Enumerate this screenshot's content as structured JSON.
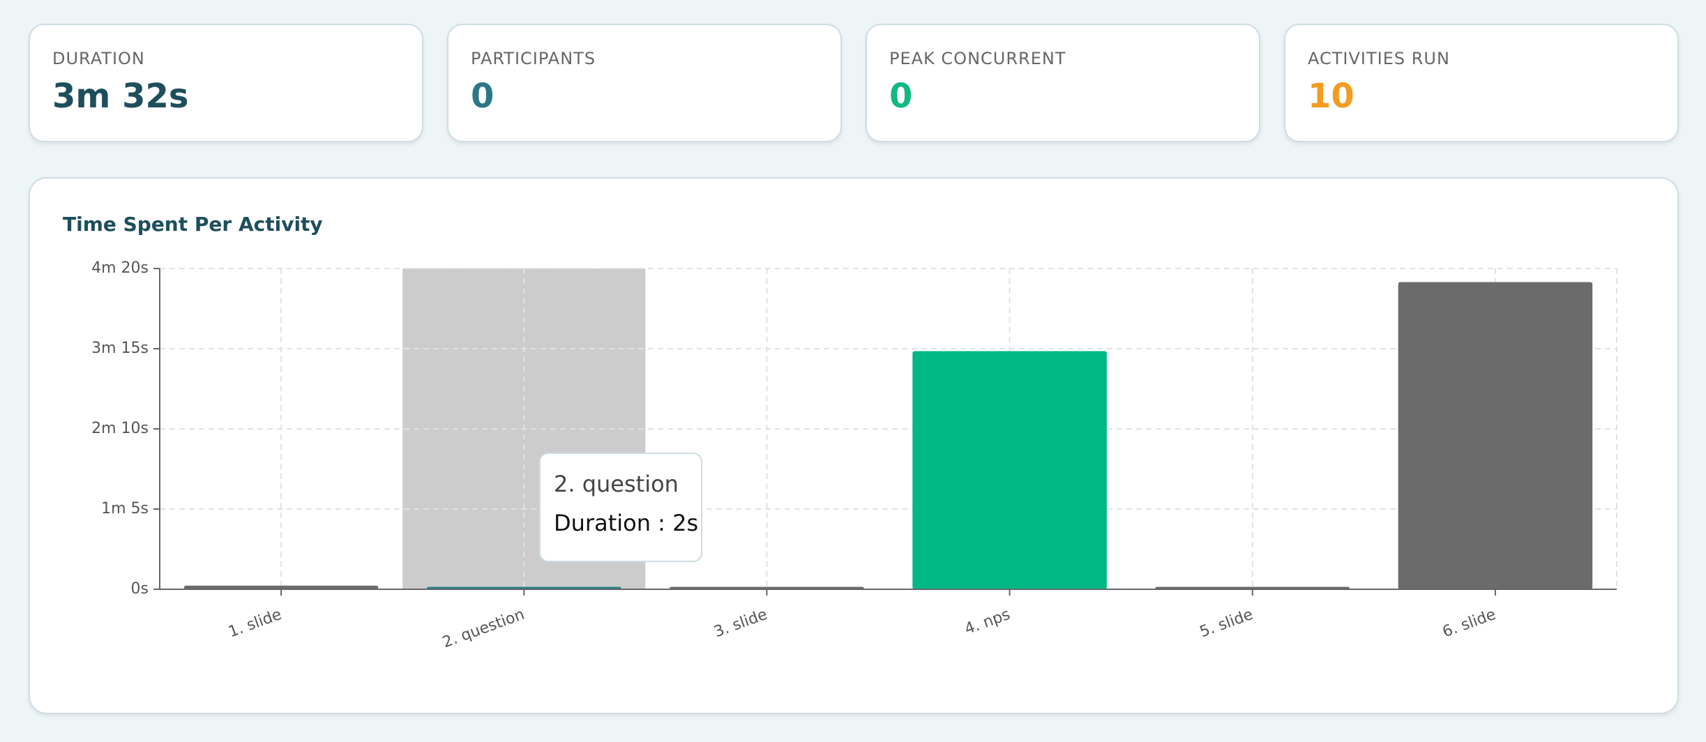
{
  "stats": [
    {
      "label": "DURATION",
      "value": "3m 32s",
      "color": "#1d4e5c"
    },
    {
      "label": "PARTICIPANTS",
      "value": "0",
      "color": "#2a7887"
    },
    {
      "label": "PEAK CONCURRENT",
      "value": "0",
      "color": "#10b981"
    },
    {
      "label": "ACTIVITIES RUN",
      "value": "10",
      "color": "#f39c1f"
    }
  ],
  "chart_data": {
    "type": "bar",
    "title": "Time Spent Per Activity",
    "categories": [
      "1. slide",
      "2. question",
      "3. slide",
      "4. nps",
      "5. slide",
      "6. slide"
    ],
    "values": [
      3,
      2,
      2,
      193,
      2,
      249
    ],
    "colors": [
      "#6b6b6b",
      "#2a7f8a",
      "#6b6b6b",
      "#00b884",
      "#6b6b6b",
      "#6b6b6b"
    ],
    "ylim": [
      0,
      260
    ],
    "yticks": [
      {
        "value": 0,
        "label": "0s"
      },
      {
        "value": 65,
        "label": "1m 5s"
      },
      {
        "value": 130,
        "label": "2m 10s"
      },
      {
        "value": 195,
        "label": "3m 15s"
      },
      {
        "value": 260,
        "label": "4m 20s"
      }
    ],
    "grid": true,
    "tooltip": {
      "text": "Duration : 2s"
    }
  }
}
